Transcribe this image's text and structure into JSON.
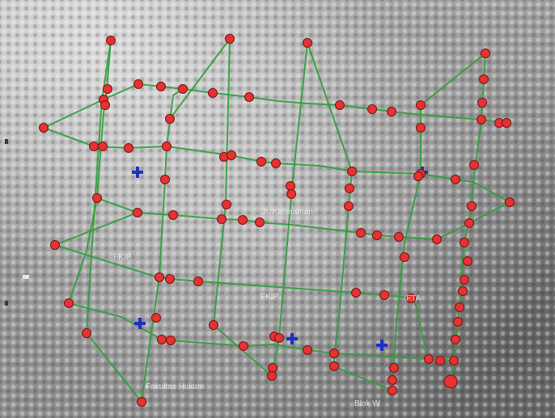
{
  "map": {
    "colors": {
      "road": "#2e9e3a",
      "node_fill": "#e53232",
      "node_stroke": "#7a1010",
      "cross_marker": "#1f2fc4"
    },
    "icons": {
      "node": "circle-node-icon",
      "cross": "plus-marker-icon"
    },
    "labels": {
      "l1": "Jl. Kalimantan",
      "l2": "FKIP",
      "l3": "FKIP",
      "l4": "FTA",
      "l5": "Fakultas Hukum",
      "l6": "Blok W"
    }
  }
}
